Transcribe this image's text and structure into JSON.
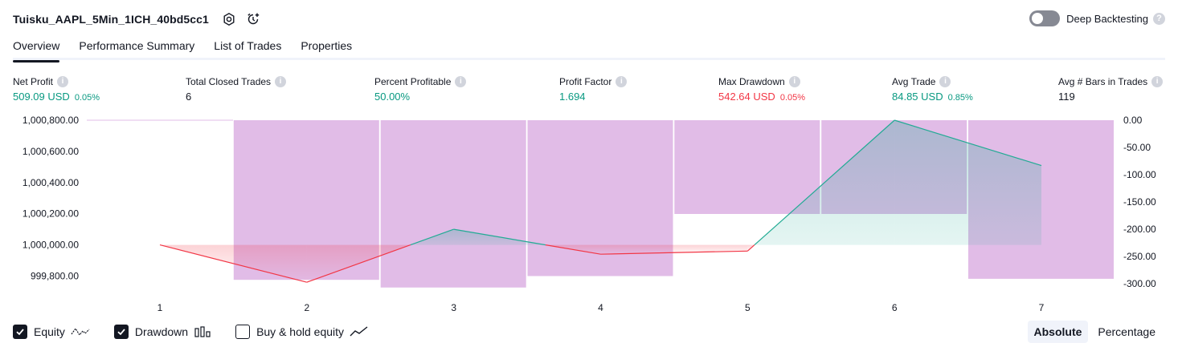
{
  "header": {
    "strategy_name": "Tuisku_AAPL_5Min_1ICH_40bd5cc1",
    "settings_icon": "settings-icon",
    "add_alert_icon": "add-alert-icon",
    "deep_backtesting_label": "Deep Backtesting",
    "deep_backtesting_enabled": false,
    "help_icon": "question-icon"
  },
  "tabs": [
    {
      "label": "Overview",
      "active": true
    },
    {
      "label": "Performance Summary",
      "active": false
    },
    {
      "label": "List of Trades",
      "active": false
    },
    {
      "label": "Properties",
      "active": false
    }
  ],
  "metrics": [
    {
      "label": "Net Profit",
      "value": "509.09 USD",
      "pct": "0.05%",
      "color": "#089981"
    },
    {
      "label": "Total Closed Trades",
      "value": "6",
      "pct": "",
      "color": "#131722"
    },
    {
      "label": "Percent Profitable",
      "value": "50.00%",
      "pct": "",
      "color": "#089981"
    },
    {
      "label": "Profit Factor",
      "value": "1.694",
      "pct": "",
      "color": "#089981"
    },
    {
      "label": "Max Drawdown",
      "value": "542.64 USD",
      "pct": "0.05%",
      "color": "#f23645"
    },
    {
      "label": "Avg Trade",
      "value": "84.85 USD",
      "pct": "0.85%",
      "color": "#089981"
    },
    {
      "label": "Avg # Bars in Trades",
      "value": "119",
      "pct": "",
      "color": "#131722"
    }
  ],
  "chart_data": {
    "type": "line",
    "x": [
      1,
      2,
      3,
      4,
      5,
      6,
      7
    ],
    "x_ticks": [
      "1",
      "2",
      "3",
      "4",
      "5",
      "6",
      "7"
    ],
    "left_axis": {
      "ticks": [
        "1,000,800.00",
        "1,000,600.00",
        "1,000,400.00",
        "1,000,200.00",
        "1,000,000.00",
        "999,800.00"
      ],
      "tick_values": [
        1000800,
        1000600,
        1000400,
        1000200,
        1000000,
        999800
      ],
      "range": [
        999720,
        1000800
      ]
    },
    "right_axis": {
      "ticks": [
        "0.00",
        "-50.00",
        "-100.00",
        "-150.00",
        "-200.00",
        "-250.00",
        "-300.00"
      ],
      "tick_values": [
        0,
        -50,
        -100,
        -150,
        -200,
        -250,
        -300
      ],
      "range": [
        -300,
        0
      ]
    },
    "series": [
      {
        "name": "Equity",
        "values": [
          1000000,
          999760,
          1000100,
          999940,
          999960,
          1000800,
          1000509
        ],
        "colors": {
          "up": "#22ab94",
          "down": "#f23645"
        }
      },
      {
        "name": "Drawdown",
        "axis": "right",
        "bars": [
          {
            "trade": 2,
            "value": -293
          },
          {
            "trade": 3,
            "value": -307
          },
          {
            "trade": 4,
            "value": -286
          },
          {
            "trade": 5,
            "value": -172
          },
          {
            "trade": 6,
            "value": -172
          },
          {
            "trade": 7,
            "value": -291
          }
        ],
        "color": "#ce93d8"
      }
    ],
    "baseline_equity": 1000000,
    "grid": false
  },
  "legend": [
    {
      "label": "Equity",
      "checked": true,
      "icon": "equity-line-icon"
    },
    {
      "label": "Drawdown",
      "checked": true,
      "icon": "drawdown-bars-icon"
    },
    {
      "label": "Buy & hold equity",
      "checked": false,
      "icon": "buy-hold-line-icon"
    }
  ],
  "mode": {
    "options": [
      "Absolute",
      "Percentage"
    ],
    "active": "Absolute"
  }
}
